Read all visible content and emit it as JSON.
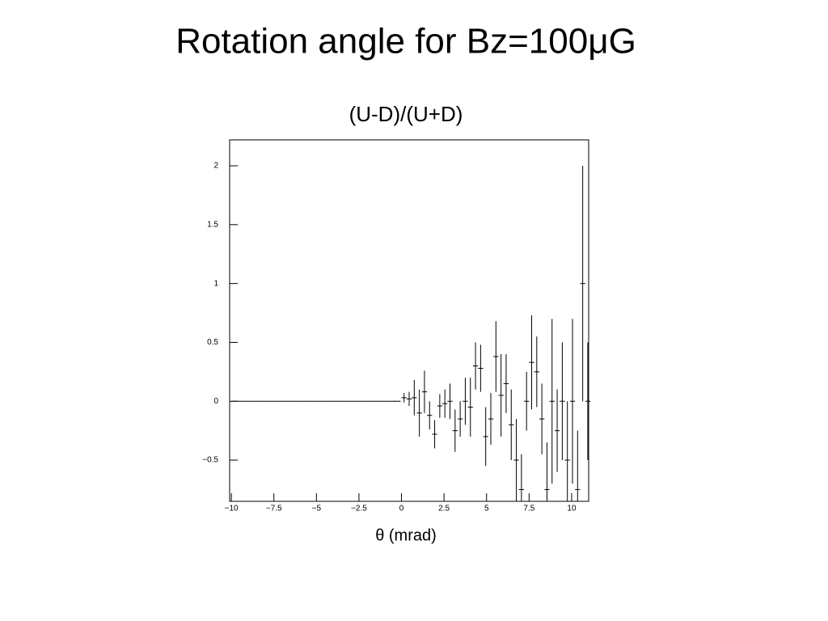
{
  "chart_data": {
    "type": "errorbar",
    "title": "Rotation angle for Bz=100μG",
    "subtitle": "(U-D)/(U+D)",
    "x_label": "θ (mrad)",
    "color": "#000000",
    "xlim": [
      -10.1,
      11
    ],
    "ylim": [
      -0.85,
      2.22
    ],
    "xticks": [
      {
        "value": -10,
        "label": "−10"
      },
      {
        "value": -7.5,
        "label": "−7.5"
      },
      {
        "value": -5,
        "label": "−5"
      },
      {
        "value": -2.5,
        "label": "−2.5"
      },
      0,
      2.5,
      5,
      7.5,
      10
    ],
    "yticks": [
      {
        "value": -0.5,
        "label": "−0.5"
      },
      0,
      0.5,
      1,
      1.5,
      2
    ],
    "x": [
      -9.85,
      -9.55,
      -9.25,
      -8.95,
      -8.65,
      -8.35,
      -8.05,
      -7.75,
      -7.45,
      -7.15,
      -6.85,
      -6.55,
      -6.25,
      -5.95,
      -5.65,
      -5.35,
      -5.05,
      -4.75,
      -4.45,
      -4.15,
      -3.85,
      -3.55,
      -3.25,
      -2.95,
      -2.65,
      -2.35,
      -2.05,
      -1.75,
      -1.45,
      -1.15,
      -0.85,
      -0.55,
      -0.25,
      0.15,
      0.45,
      0.75,
      1.05,
      1.35,
      1.65,
      1.95,
      2.25,
      2.55,
      2.85,
      3.15,
      3.45,
      3.75,
      4.05,
      4.35,
      4.65,
      4.95,
      5.25,
      5.55,
      5.85,
      6.15,
      6.45,
      6.75,
      7.05,
      7.35,
      7.65,
      7.95,
      8.25,
      8.55,
      8.85,
      9.15,
      9.45,
      9.75,
      10.05,
      10.35,
      10.65,
      10.95
    ],
    "values": [
      0,
      0,
      0,
      0,
      0,
      0,
      0,
      0,
      0,
      0,
      0,
      0,
      0,
      0,
      0,
      0,
      0,
      0,
      0,
      0,
      0,
      0,
      0,
      0,
      0,
      0,
      0,
      0,
      0,
      0,
      0,
      0,
      0,
      0.03,
      0.02,
      0.03,
      -0.1,
      0.08,
      -0.12,
      -0.28,
      -0.04,
      -0.02,
      0,
      -0.25,
      -0.15,
      0,
      -0.05,
      0.3,
      0.28,
      -0.3,
      -0.15,
      0.38,
      0.05,
      0.15,
      -0.2,
      -0.5,
      -0.75,
      0,
      0.33,
      0.25,
      -0.15,
      -0.75,
      0,
      -0.25,
      0,
      -0.5,
      0,
      -0.75,
      1,
      0
    ],
    "errors": [
      0,
      0,
      0,
      0,
      0,
      0,
      0,
      0,
      0,
      0,
      0,
      0,
      0,
      0,
      0,
      0,
      0,
      0,
      0,
      0,
      0,
      0,
      0,
      0,
      0,
      0,
      0,
      0,
      0,
      0,
      0,
      0,
      0,
      0.04,
      0.06,
      0.15,
      0.2,
      0.18,
      0.12,
      0.12,
      0.1,
      0.12,
      0.15,
      0.18,
      0.15,
      0.2,
      0.25,
      0.2,
      0.2,
      0.25,
      0.22,
      0.3,
      0.35,
      0.25,
      0.3,
      0.35,
      0.3,
      0.25,
      0.4,
      0.3,
      0.3,
      0.4,
      0.7,
      0.35,
      0.5,
      0.5,
      0.7,
      0.5,
      1,
      0.5
    ]
  }
}
